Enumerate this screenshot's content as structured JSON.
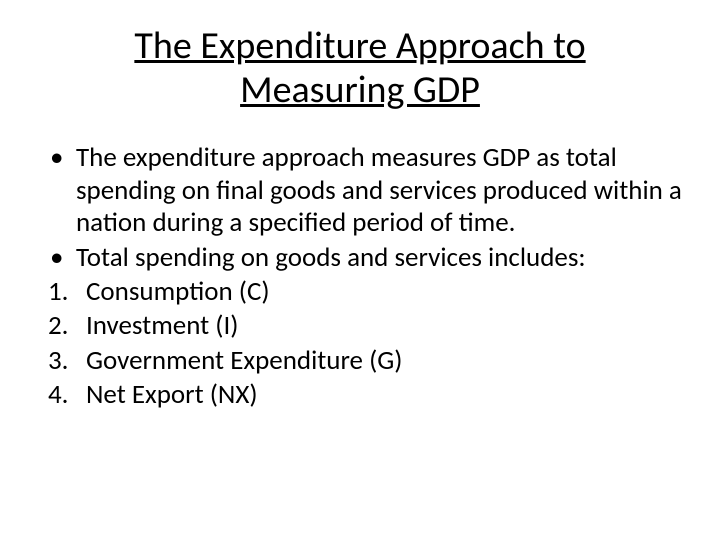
{
  "slide": {
    "title": "The Expenditure Approach to Measuring GDP",
    "bullets": [
      "The expenditure approach measures GDP as total spending on final goods and services produced within a nation during a specified period of time.",
      "Total spending on goods and services includes:"
    ],
    "numbered": [
      {
        "n": "1.",
        "text": "Consumption (C)"
      },
      {
        "n": "2.",
        "text": "Investment (I)"
      },
      {
        "n": "3.",
        "text": "Government Expenditure (G)"
      },
      {
        "n": "4.",
        "text": "Net Export (NX)"
      }
    ],
    "style": {
      "background_color": "#ffffff",
      "text_color": "#000000",
      "title_fontsize": 38,
      "body_fontsize": 27,
      "font_family": "Calibri",
      "bullet_char": "•"
    }
  }
}
